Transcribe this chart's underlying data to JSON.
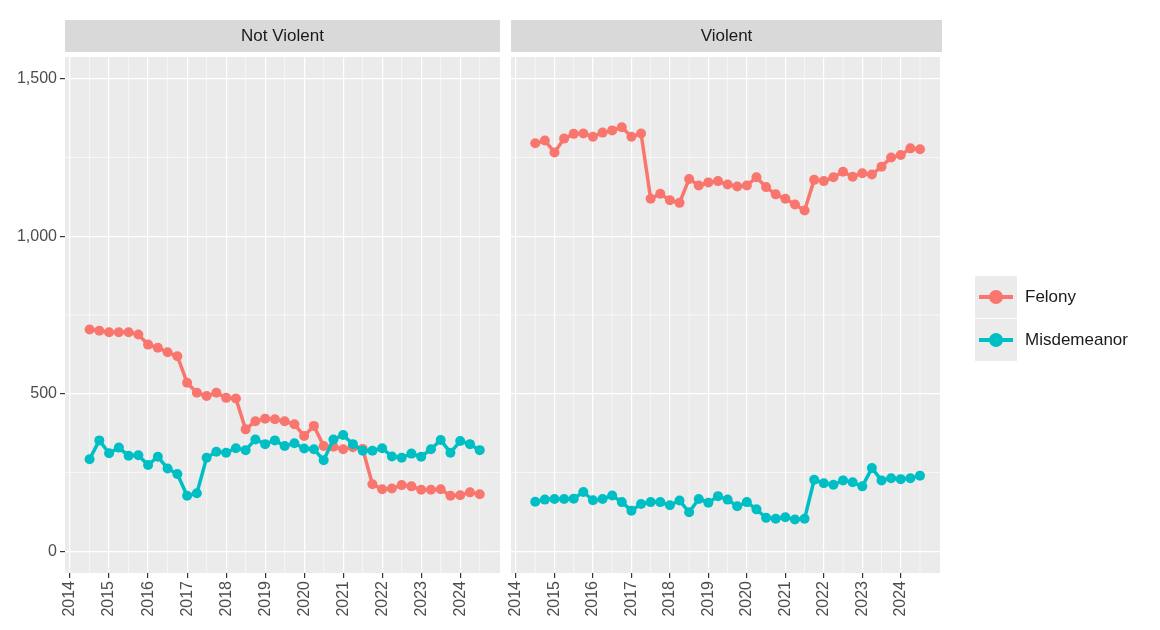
{
  "chart_data": [
    {
      "type": "line",
      "title": "Not Violent",
      "x": [
        2014.5,
        2014.75,
        2015,
        2015.25,
        2015.5,
        2015.75,
        2016,
        2016.25,
        2016.5,
        2016.75,
        2017,
        2017.25,
        2017.5,
        2017.75,
        2018,
        2018.25,
        2018.5,
        2018.75,
        2019,
        2019.25,
        2019.5,
        2019.75,
        2020,
        2020.25,
        2020.5,
        2020.75,
        2021,
        2021.25,
        2021.5,
        2021.75,
        2022,
        2022.25,
        2022.5,
        2022.75,
        2023,
        2023.25,
        2023.5,
        2023.75,
        2024,
        2024.25,
        2024.5
      ],
      "series": [
        {
          "name": "Felony",
          "color": "#f8766d",
          "values": [
            704,
            700,
            695,
            695,
            695,
            688,
            656,
            646,
            632,
            619,
            535,
            503,
            493,
            503,
            487,
            485,
            387,
            413,
            421,
            419,
            413,
            403,
            366,
            398,
            334,
            332,
            324,
            330,
            325,
            213,
            197,
            199,
            210,
            206,
            195,
            195,
            197,
            176,
            178,
            187,
            181
          ]
        },
        {
          "name": "Misdemeanor",
          "color": "#00bfc4",
          "values": [
            292,
            352,
            311,
            329,
            303,
            305,
            274,
            300,
            263,
            245,
            176,
            184,
            297,
            316,
            313,
            327,
            321,
            355,
            340,
            352,
            334,
            343,
            326,
            324,
            289,
            355,
            369,
            340,
            319,
            319,
            327,
            301,
            297,
            310,
            300,
            324,
            353,
            313,
            350,
            340,
            321
          ]
        }
      ],
      "xlim": [
        2013.87,
        2025.02
      ],
      "xticks": [
        2014,
        2015,
        2016,
        2017,
        2018,
        2019,
        2020,
        2021,
        2022,
        2023,
        2024
      ],
      "ylim": [
        -69,
        1569
      ],
      "yticks": [
        0,
        500,
        {
          "value": 1000,
          "label": "1,000"
        },
        {
          "value": 1500,
          "label": "1,500"
        }
      ],
      "grid": true,
      "legend": "right",
      "marker": "circle",
      "line_style": "solid"
    },
    {
      "type": "line",
      "title": "Violent",
      "x": [
        2014.5,
        2014.75,
        2015,
        2015.25,
        2015.5,
        2015.75,
        2016,
        2016.25,
        2016.5,
        2016.75,
        2017,
        2017.25,
        2017.5,
        2017.75,
        2018,
        2018.25,
        2018.5,
        2018.75,
        2019,
        2019.25,
        2019.5,
        2019.75,
        2020,
        2020.25,
        2020.5,
        2020.75,
        2021,
        2021.25,
        2021.5,
        2021.75,
        2022,
        2022.25,
        2022.5,
        2022.75,
        2023,
        2023.25,
        2023.5,
        2023.75,
        2024,
        2024.25,
        2024.5
      ],
      "series": [
        {
          "color": "#f8766d",
          "values": [
            1295,
            1304,
            1266,
            1310,
            1325,
            1326,
            1316,
            1329,
            1336,
            1346,
            1316,
            1326,
            1119,
            1135,
            1114,
            1106,
            1182,
            1161,
            1171,
            1175,
            1164,
            1158,
            1161,
            1187,
            1156,
            1133,
            1119,
            1101,
            1082,
            1179,
            1175,
            1187,
            1205,
            1189,
            1200,
            1196,
            1221,
            1250,
            1258,
            1279,
            1276
          ]
        },
        {
          "color": "#00bfc4",
          "values": [
            157,
            164,
            166,
            166,
            167,
            188,
            162,
            166,
            177,
            156,
            129,
            150,
            156,
            156,
            146,
            161,
            124,
            166,
            154,
            175,
            164,
            143,
            156,
            133,
            106,
            103,
            108,
            101,
            103,
            227,
            216,
            211,
            225,
            219,
            206,
            264,
            225,
            232,
            229,
            232,
            240
          ]
        }
      ],
      "xlim": [
        2013.87,
        2025.02
      ],
      "xticks": [
        2014,
        2015,
        2016,
        2017,
        2018,
        2019,
        2020,
        2021,
        2022,
        2023,
        2024
      ],
      "ylim": [
        -69,
        1569
      ],
      "yticks": [
        0,
        500,
        1000,
        1500
      ],
      "tick_labels": "x",
      "grid": true,
      "marker": "circle",
      "line_style": "solid"
    }
  ]
}
